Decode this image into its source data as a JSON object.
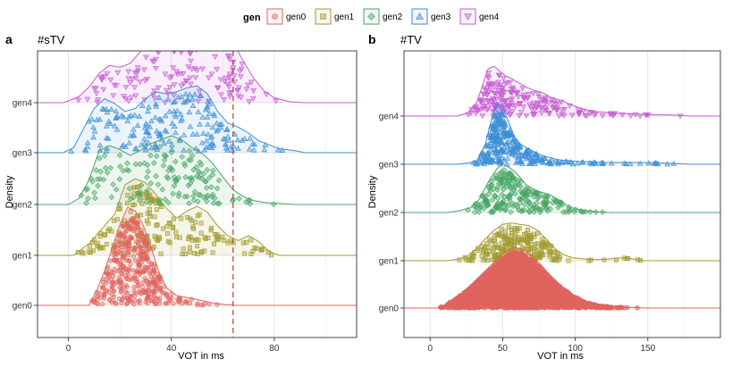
{
  "legend": {
    "title": "gen",
    "items": [
      {
        "label": "gen0",
        "color": "#e0645e",
        "shape": "circle"
      },
      {
        "label": "gen1",
        "color": "#a39b2c",
        "shape": "square"
      },
      {
        "label": "gen2",
        "color": "#45a663",
        "shape": "diamond"
      },
      {
        "label": "gen3",
        "color": "#3b8fd6",
        "shape": "triangle-up"
      },
      {
        "label": "gen4",
        "color": "#c65ad3",
        "shape": "triangle-down"
      }
    ]
  },
  "chart_data": [
    {
      "type": "ridgeline",
      "panel": "a",
      "title": "#sTV",
      "xlabel": "VOT in ms",
      "ylabel": "Density",
      "xlim": [
        -12,
        112
      ],
      "xticks": [
        0,
        40,
        80
      ],
      "categories": [
        "gen0",
        "gen1",
        "gen2",
        "gen3",
        "gen4"
      ],
      "reference_line": {
        "x": 64,
        "color": "#c0392b",
        "style": "dashed"
      },
      "series": [
        {
          "name": "gen0",
          "points": 420,
          "density": [
            [
              8,
              0
            ],
            [
              11,
              0.15
            ],
            [
              14,
              0.35
            ],
            [
              17,
              0.58
            ],
            [
              20,
              0.82
            ],
            [
              23,
              1.0
            ],
            [
              26,
              0.96
            ],
            [
              29,
              0.82
            ],
            [
              32,
              0.6
            ],
            [
              35,
              0.35
            ],
            [
              38,
              0.18
            ],
            [
              42,
              0.1
            ],
            [
              46,
              0.08
            ],
            [
              50,
              0.06
            ],
            [
              55,
              0.03
            ],
            [
              60,
              0.01
            ],
            [
              65,
              0
            ]
          ]
        },
        {
          "name": "gen1",
          "points": 180,
          "density": [
            [
              2,
              0
            ],
            [
              8,
              0.12
            ],
            [
              14,
              0.3
            ],
            [
              18,
              0.42
            ],
            [
              22,
              0.72
            ],
            [
              26,
              0.78
            ],
            [
              30,
              0.74
            ],
            [
              34,
              0.62
            ],
            [
              38,
              0.48
            ],
            [
              42,
              0.38
            ],
            [
              46,
              0.45
            ],
            [
              50,
              0.5
            ],
            [
              54,
              0.44
            ],
            [
              58,
              0.3
            ],
            [
              62,
              0.2
            ],
            [
              66,
              0.15
            ],
            [
              70,
              0.2
            ],
            [
              74,
              0.14
            ],
            [
              78,
              0.04
            ],
            [
              82,
              0
            ]
          ]
        },
        {
          "name": "gen2",
          "points": 150,
          "density": [
            [
              0,
              0
            ],
            [
              4,
              0.06
            ],
            [
              8,
              0.25
            ],
            [
              12,
              0.55
            ],
            [
              16,
              0.6
            ],
            [
              20,
              0.56
            ],
            [
              24,
              0.5
            ],
            [
              28,
              0.55
            ],
            [
              32,
              0.62
            ],
            [
              36,
              0.66
            ],
            [
              40,
              0.7
            ],
            [
              44,
              0.66
            ],
            [
              48,
              0.58
            ],
            [
              52,
              0.52
            ],
            [
              56,
              0.42
            ],
            [
              60,
              0.28
            ],
            [
              64,
              0.15
            ],
            [
              68,
              0.08
            ],
            [
              72,
              0.04
            ],
            [
              76,
              0.02
            ],
            [
              82,
              0.01
            ],
            [
              88,
              0
            ]
          ]
        },
        {
          "name": "gen3",
          "points": 190,
          "density": [
            [
              -2,
              0
            ],
            [
              2,
              0.05
            ],
            [
              6,
              0.25
            ],
            [
              10,
              0.45
            ],
            [
              14,
              0.55
            ],
            [
              18,
              0.5
            ],
            [
              22,
              0.42
            ],
            [
              26,
              0.45
            ],
            [
              30,
              0.55
            ],
            [
              34,
              0.62
            ],
            [
              38,
              0.6
            ],
            [
              42,
              0.62
            ],
            [
              46,
              0.66
            ],
            [
              50,
              0.68
            ],
            [
              54,
              0.6
            ],
            [
              58,
              0.42
            ],
            [
              62,
              0.3
            ],
            [
              66,
              0.26
            ],
            [
              70,
              0.2
            ],
            [
              74,
              0.12
            ],
            [
              78,
              0.08
            ],
            [
              82,
              0.04
            ],
            [
              88,
              0.02
            ],
            [
              92,
              0
            ]
          ]
        },
        {
          "name": "gen4",
          "points": 170,
          "density": [
            [
              -2,
              0
            ],
            [
              4,
              0.06
            ],
            [
              8,
              0.16
            ],
            [
              12,
              0.3
            ],
            [
              16,
              0.38
            ],
            [
              20,
              0.36
            ],
            [
              24,
              0.4
            ],
            [
              28,
              0.52
            ],
            [
              32,
              0.68
            ],
            [
              36,
              0.85
            ],
            [
              40,
              0.95
            ],
            [
              44,
              1.0
            ],
            [
              48,
              0.96
            ],
            [
              52,
              0.88
            ],
            [
              56,
              0.85
            ],
            [
              60,
              0.75
            ],
            [
              64,
              0.62
            ],
            [
              68,
              0.42
            ],
            [
              72,
              0.25
            ],
            [
              76,
              0.12
            ],
            [
              80,
              0.05
            ],
            [
              86,
              0.01
            ],
            [
              92,
              0
            ]
          ]
        }
      ]
    },
    {
      "type": "ridgeline",
      "panel": "b",
      "title": "#TV",
      "xlabel": "VOT in ms",
      "ylabel": "Density",
      "xlim": [
        -18,
        200
      ],
      "xticks": [
        0,
        50,
        100,
        150
      ],
      "categories": [
        "gen0",
        "gen1",
        "gen2",
        "gen3",
        "gen4"
      ],
      "series": [
        {
          "name": "gen0",
          "points": 3500,
          "density": [
            [
              5,
              0
            ],
            [
              10,
              0.05
            ],
            [
              16,
              0.14
            ],
            [
              22,
              0.25
            ],
            [
              28,
              0.38
            ],
            [
              34,
              0.52
            ],
            [
              40,
              0.66
            ],
            [
              46,
              0.8
            ],
            [
              52,
              0.92
            ],
            [
              58,
              1.0
            ],
            [
              64,
              0.97
            ],
            [
              70,
              0.86
            ],
            [
              76,
              0.72
            ],
            [
              82,
              0.56
            ],
            [
              88,
              0.42
            ],
            [
              94,
              0.3
            ],
            [
              100,
              0.2
            ],
            [
              106,
              0.12
            ],
            [
              112,
              0.07
            ],
            [
              118,
              0.04
            ],
            [
              126,
              0.02
            ],
            [
              136,
              0.01
            ],
            [
              150,
              0
            ]
          ]
        },
        {
          "name": "gen1",
          "points": 230,
          "density": [
            [
              12,
              0
            ],
            [
              20,
              0.03
            ],
            [
              26,
              0.08
            ],
            [
              32,
              0.2
            ],
            [
              38,
              0.36
            ],
            [
              44,
              0.5
            ],
            [
              50,
              0.6
            ],
            [
              56,
              0.62
            ],
            [
              62,
              0.6
            ],
            [
              68,
              0.58
            ],
            [
              74,
              0.5
            ],
            [
              80,
              0.36
            ],
            [
              86,
              0.2
            ],
            [
              92,
              0.1
            ],
            [
              98,
              0.05
            ],
            [
              106,
              0.03
            ],
            [
              112,
              0.02
            ],
            [
              120,
              0.02
            ],
            [
              128,
              0.04
            ],
            [
              134,
              0.05
            ],
            [
              140,
              0.03
            ],
            [
              148,
              0
            ]
          ]
        },
        {
          "name": "gen2",
          "points": 220,
          "density": [
            [
              12,
              0
            ],
            [
              20,
              0.03
            ],
            [
              28,
              0.08
            ],
            [
              34,
              0.22
            ],
            [
              40,
              0.5
            ],
            [
              46,
              0.72
            ],
            [
              50,
              0.8
            ],
            [
              54,
              0.75
            ],
            [
              58,
              0.68
            ],
            [
              62,
              0.58
            ],
            [
              66,
              0.46
            ],
            [
              70,
              0.4
            ],
            [
              76,
              0.34
            ],
            [
              82,
              0.3
            ],
            [
              88,
              0.22
            ],
            [
              94,
              0.12
            ],
            [
              100,
              0.06
            ],
            [
              108,
              0.03
            ],
            [
              116,
              0.01
            ],
            [
              124,
              0
            ]
          ]
        },
        {
          "name": "gen3",
          "points": 300,
          "density": [
            [
              18,
              0
            ],
            [
              26,
              0.02
            ],
            [
              32,
              0.05
            ],
            [
              38,
              0.32
            ],
            [
              42,
              0.72
            ],
            [
              46,
              1.0
            ],
            [
              50,
              0.95
            ],
            [
              54,
              0.7
            ],
            [
              58,
              0.46
            ],
            [
              62,
              0.34
            ],
            [
              66,
              0.28
            ],
            [
              72,
              0.2
            ],
            [
              78,
              0.14
            ],
            [
              84,
              0.1
            ],
            [
              90,
              0.07
            ],
            [
              100,
              0.05
            ],
            [
              110,
              0.04
            ],
            [
              120,
              0.03
            ],
            [
              130,
              0.03
            ],
            [
              140,
              0.03
            ],
            [
              150,
              0.03
            ],
            [
              160,
              0.02
            ],
            [
              170,
              0.01
            ],
            [
              180,
              0
            ]
          ]
        },
        {
          "name": "gen4",
          "points": 210,
          "density": [
            [
              18,
              0
            ],
            [
              26,
              0.05
            ],
            [
              32,
              0.22
            ],
            [
              36,
              0.5
            ],
            [
              40,
              0.78
            ],
            [
              44,
              0.82
            ],
            [
              48,
              0.74
            ],
            [
              52,
              0.66
            ],
            [
              56,
              0.62
            ],
            [
              60,
              0.56
            ],
            [
              66,
              0.48
            ],
            [
              72,
              0.42
            ],
            [
              78,
              0.38
            ],
            [
              84,
              0.3
            ],
            [
              90,
              0.26
            ],
            [
              96,
              0.2
            ],
            [
              102,
              0.14
            ],
            [
              108,
              0.1
            ],
            [
              116,
              0.07
            ],
            [
              126,
              0.05
            ],
            [
              136,
              0.04
            ],
            [
              146,
              0.03
            ],
            [
              156,
              0.02
            ],
            [
              164,
              0.02
            ],
            [
              172,
              0.01
            ],
            [
              180,
              0
            ]
          ]
        }
      ]
    }
  ]
}
